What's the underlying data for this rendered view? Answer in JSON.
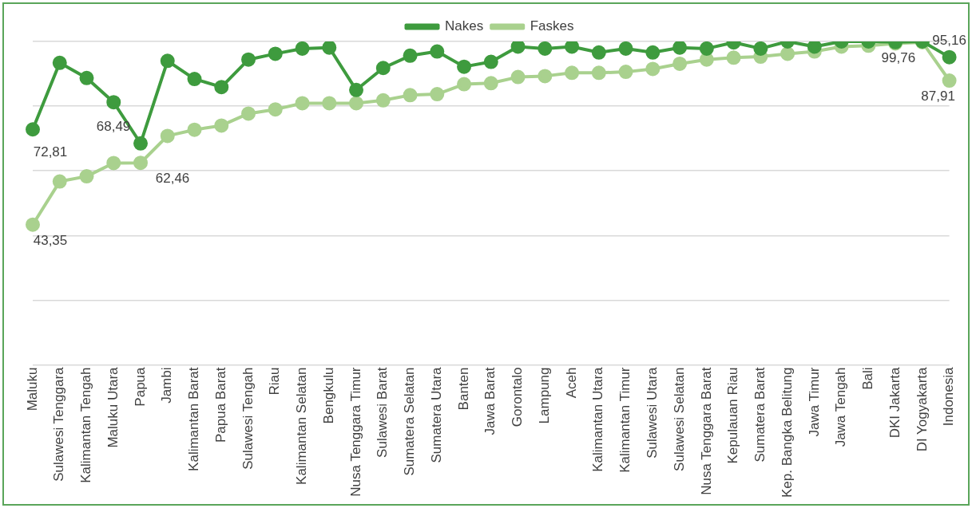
{
  "chart_data": {
    "type": "line",
    "categories": [
      "Maluku",
      "Sulawesi Tenggara",
      "Kalimantan Tengah",
      "Maluku Utara",
      "Papua",
      "Jambi",
      "Kalimantan Barat",
      "Papua Barat",
      "Sulawesi Tengah",
      "Riau",
      "Kalimantan Selatan",
      "Bengkulu",
      "Nusa Tenggara Timur",
      "Sulawesi Barat",
      "Sumatera Selatan",
      "Sumatera Utara",
      "Banten",
      "Jawa Barat",
      "Gorontalo",
      "Lampung",
      "Aceh",
      "Kalimantan Utara",
      "Kalimantan Timur",
      "Sulawesi Utara",
      "Sulawesi Selatan",
      "Nusa Tenggara Barat",
      "Kepulauan Riau",
      "Sumatera Barat",
      "Kep. Bangka Belitung",
      "Jawa Timur",
      "Jawa Tengah",
      "Bali",
      "DKI Jakarta",
      "DI Yogyakarta",
      "Indonesia"
    ],
    "series": [
      {
        "name": "Nakes",
        "color": "#3e9b3e",
        "values": [
          72.81,
          93.4,
          88.7,
          81.2,
          68.49,
          94.0,
          88.4,
          85.9,
          94.4,
          96.2,
          97.8,
          98.1,
          85.0,
          91.8,
          95.6,
          96.9,
          92.2,
          93.7,
          98.4,
          97.8,
          98.4,
          96.6,
          97.8,
          96.6,
          98.1,
          97.8,
          99.7,
          97.8,
          100.0,
          98.4,
          100.0,
          100.0,
          99.8,
          100.0,
          95.16
        ],
        "value_labels": [
          "72,81",
          null,
          null,
          null,
          "68,49",
          null,
          null,
          null,
          null,
          null,
          null,
          null,
          null,
          null,
          null,
          null,
          null,
          null,
          null,
          null,
          null,
          null,
          null,
          null,
          null,
          null,
          null,
          null,
          null,
          null,
          null,
          null,
          null,
          null,
          "95,16"
        ]
      },
      {
        "name": "Faskes",
        "color": "#a9d18e",
        "values": [
          43.35,
          56.7,
          58.3,
          62.4,
          62.46,
          70.8,
          72.7,
          74.0,
          77.7,
          79.0,
          80.9,
          80.9,
          80.9,
          81.8,
          83.4,
          83.7,
          86.8,
          87.1,
          89.0,
          89.3,
          90.3,
          90.3,
          90.6,
          91.5,
          93.1,
          94.4,
          95.0,
          95.3,
          96.2,
          96.9,
          98.4,
          98.7,
          99.4,
          99.76,
          87.91
        ],
        "value_labels": [
          "43,35",
          null,
          null,
          null,
          "62,46",
          null,
          null,
          null,
          null,
          null,
          null,
          null,
          null,
          null,
          null,
          null,
          null,
          null,
          null,
          null,
          null,
          null,
          null,
          null,
          null,
          null,
          null,
          null,
          null,
          null,
          null,
          null,
          null,
          "99,76",
          "87,91"
        ]
      }
    ],
    "ylim": [
      0,
      100
    ],
    "yticks": [
      {
        "value": 0,
        "label": null
      },
      {
        "value": 20,
        "label": null
      },
      {
        "value": 40,
        "label": null
      },
      {
        "value": 60,
        "label": null
      },
      {
        "value": 80,
        "label": null
      },
      {
        "value": 100,
        "label": null
      }
    ],
    "grid": "y",
    "legend": "top",
    "marker": "circle",
    "line_style": "solid"
  }
}
